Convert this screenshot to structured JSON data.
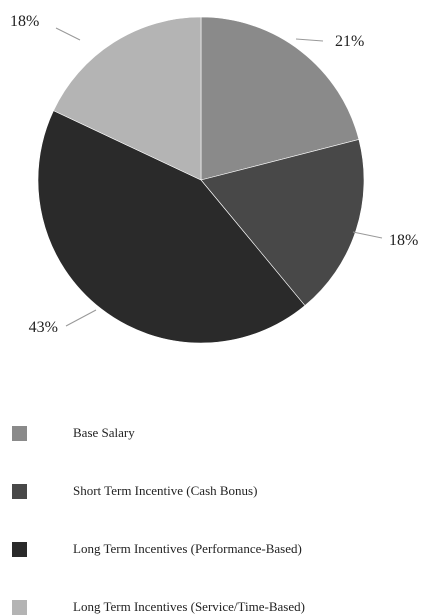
{
  "chart_data": {
    "type": "pie",
    "title": "",
    "slices": [
      {
        "label": "Base Salary",
        "value": 21,
        "display": "21%",
        "color": "#8a8a8a"
      },
      {
        "label": "Short Term Incentive (Cash Bonus)",
        "value": 18,
        "display": "18%",
        "color": "#484848"
      },
      {
        "label": "Long Term Incentives (Performance-Based)",
        "value": 43,
        "display": "43%",
        "color": "#2a2a2a"
      },
      {
        "label": "Long Term Incentives (Service/Time-Based)",
        "value": 18,
        "display": "18%",
        "color": "#b4b4b4"
      }
    ],
    "legend_position": "bottom",
    "start": "top, clockwise"
  }
}
